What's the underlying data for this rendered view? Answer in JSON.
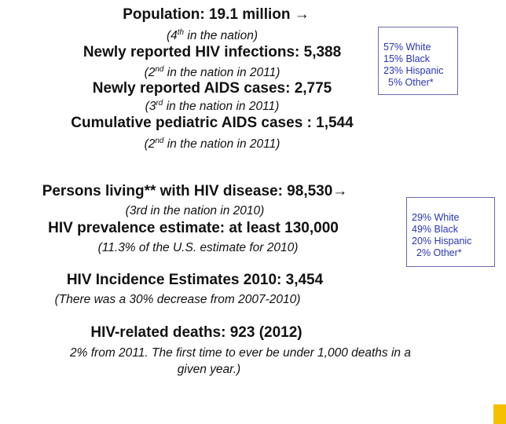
{
  "block1": {
    "population": "Population: 19.1 million →",
    "population_note": {
      "before": "(4",
      "sup": "th",
      "after": " in the nation)"
    },
    "hiv_infections": "Newly reported HIV infections: 5,388",
    "hiv_infections_note": {
      "before": "(2",
      "sup": "nd",
      "after": " in the nation in 2011)"
    },
    "aids_cases": "Newly reported AIDS cases: 2,775",
    "aids_cases_note": {
      "before": "(3",
      "sup": "rd",
      "after": " in the nation in 2011)"
    },
    "pediatric": "Cumulative pediatric AIDS cases : 1,544",
    "pediatric_note": {
      "before": "(2",
      "sup": "nd",
      "after": " in the nation in 2011)"
    }
  },
  "box1": [
    "57% White",
    "15% Black",
    "23% Hispanic",
    "5% Other*"
  ],
  "block2": {
    "living": "Persons living** with HIV disease: 98,530→",
    "living_note": "(3rd in the nation in 2010)",
    "prevalence": "HIV prevalence estimate:  at least 130,000",
    "prevalence_note": "(11.3% of the U.S. estimate for 2010)"
  },
  "box2": [
    "29% White",
    "49% Black",
    "20% Hispanic",
    "2% Other*"
  ],
  "block3": {
    "incidence": "HIV Incidence Estimates 2010:  3,454",
    "incidence_note": "(There was a 30% decrease from 2007-2010)"
  },
  "block4": {
    "deaths": "HIV-related deaths: 923 (2012)",
    "deaths_note_1": "2% from 2011. The first time to ever be under 1,000 deaths in a",
    "deaths_note_2": "given year.)"
  }
}
